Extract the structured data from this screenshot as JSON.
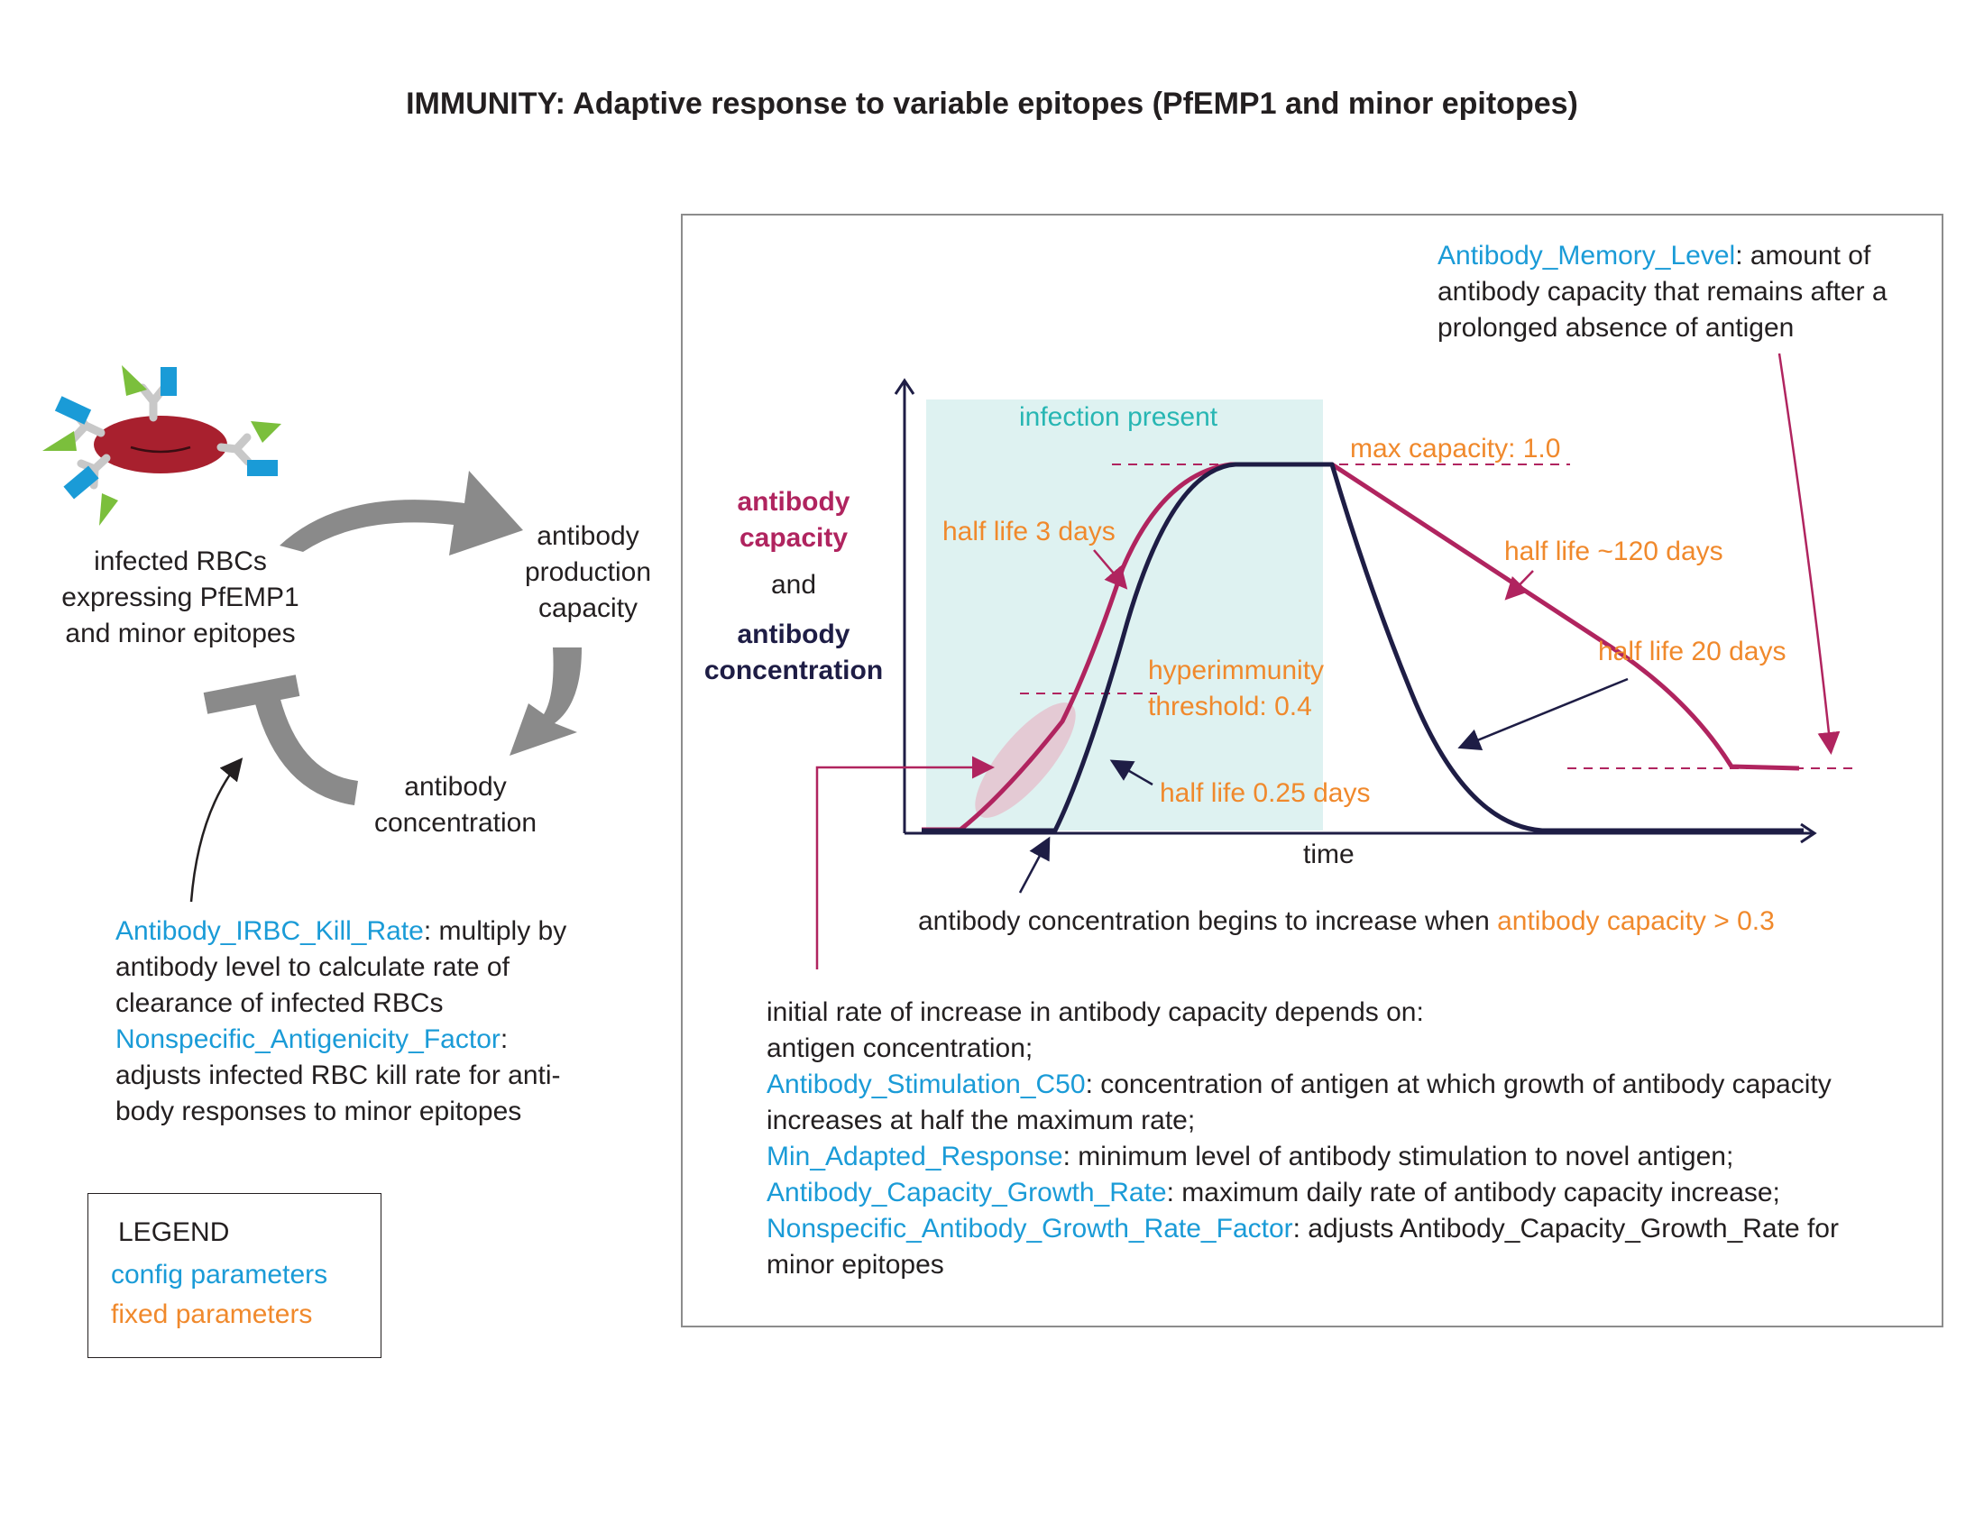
{
  "title": "IMMUNITY: Adaptive response to variable epitopes (PfEMP1 and minor epitopes)",
  "cycle": {
    "node_rbc": [
      "infected RBCs",
      "expressing PfEMP1",
      "and minor epitopes"
    ],
    "node_capacity": [
      "antibody",
      "production",
      "capacity"
    ],
    "node_concentration": [
      "antibody",
      "concentration"
    ]
  },
  "kill_rate_note": {
    "param1": "Antibody_IRBC_Kill_Rate",
    "param1_desc_a": ": multiply by",
    "param1_desc_b": "antibody level to calculate rate of",
    "param1_desc_c": "clearance of infected RBCs",
    "param2": "Nonspecific_Antigenicity_Factor",
    "param2_desc_a": ":",
    "param2_desc_b": "adjusts infected RBC kill rate for anti-",
    "param2_desc_c": "body responses to minor epitopes"
  },
  "legend": {
    "title": "LEGEND",
    "config": "config parameters",
    "fixed": "fixed parameters"
  },
  "colors": {
    "config": "#1a9bd7",
    "fixed": "#f0892c",
    "capacity_curve": "#b0245f",
    "concentration_curve": "#1e1d45",
    "infection_band": "#def2f1",
    "arrow_gray": "#8a8a8a"
  },
  "chart": {
    "ylabel_capacity": [
      "antibody",
      "capacity"
    ],
    "ylabel_and": "and",
    "ylabel_concentration": [
      "antibody",
      "concentration"
    ],
    "xlabel": "time",
    "infection_label": "infection present",
    "max_capacity": "max capacity: 1.0",
    "half_life_3": "half life 3 days",
    "half_life_120": "half life ~120 days",
    "half_life_20": "half life 20 days",
    "half_life_025": "half life 0.25 days",
    "hyper_a": "hyperimmunity",
    "hyper_b": "threshold: 0.4",
    "memory_param": "Antibody_Memory_Level",
    "memory_desc_a": ": amount of",
    "memory_desc_b": "antibody capacity that remains after a",
    "memory_desc_c": "prolonged absence of antigen",
    "begins_text": "antibody concentration begins to increase when ",
    "begins_cond": "antibody capacity > 0.3"
  },
  "growth_note": {
    "intro": "initial rate of increase in antibody capacity depends on:",
    "antigen": "antigen concentration;",
    "c50": "Antibody_Stimulation_C50",
    "c50_desc_a": ": concentration of antigen at which growth of antibody capacity",
    "c50_desc_b": "increases at half the maximum rate;",
    "min": "Min_Adapted_Response",
    "min_desc": ": minimum level of antibody stimulation to novel antigen;",
    "growth": "Antibody_Capacity_Growth_Rate",
    "growth_desc": ": maximum daily rate of antibody capacity increase;",
    "nonspec": "Nonspecific_Antibody_Growth_Rate_Factor",
    "nonspec_desc_a": ": adjusts Antibody_Capacity_Growth_Rate for",
    "nonspec_desc_b": "minor epitopes"
  }
}
